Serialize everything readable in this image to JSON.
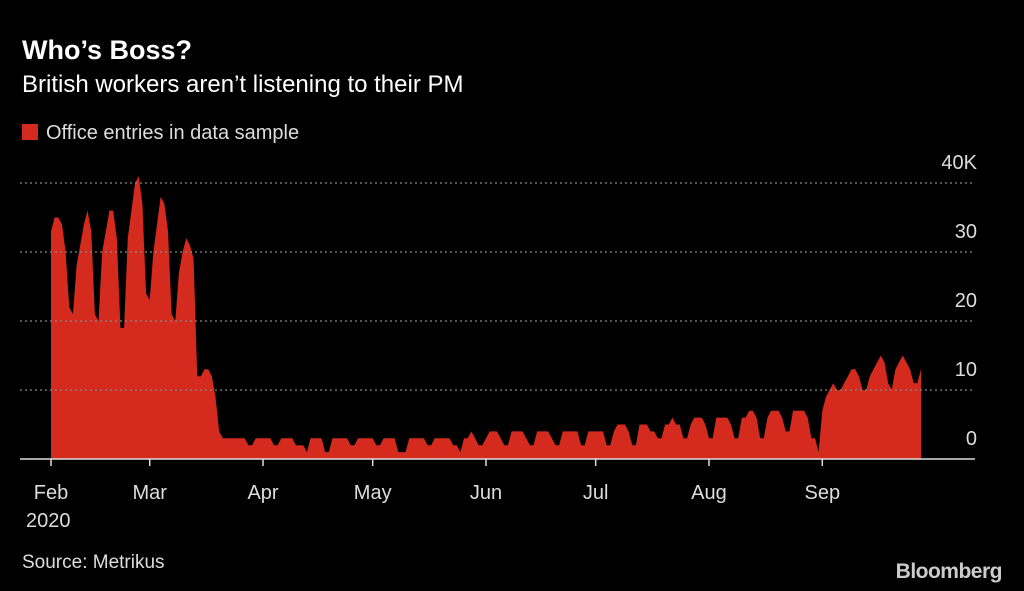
{
  "chart_data": {
    "type": "area",
    "title": "Who’s Boss?",
    "subtitle": "British workers aren’t listening to their PM",
    "source": "Source: Metrikus",
    "brand": "Bloomberg",
    "year_label": "2020",
    "categories": [
      "Feb",
      null,
      null,
      null,
      null,
      null,
      null,
      null,
      null,
      null,
      null,
      null,
      null,
      null,
      null,
      null,
      null,
      null,
      null,
      null,
      null,
      null,
      null,
      null,
      null,
      null,
      null,
      "Mar",
      null,
      null,
      null,
      null,
      null,
      null,
      null,
      null,
      null,
      null,
      null,
      null,
      null,
      null,
      null,
      null,
      null,
      null,
      null,
      null,
      null,
      null,
      null,
      null,
      null,
      null,
      null,
      null,
      null,
      null,
      "Apr",
      null,
      null,
      null,
      null,
      null,
      null,
      null,
      null,
      null,
      null,
      null,
      null,
      null,
      null,
      null,
      null,
      null,
      null,
      null,
      null,
      null,
      null,
      null,
      null,
      null,
      null,
      null,
      null,
      null,
      "May",
      null,
      null,
      null,
      null,
      null,
      null,
      null,
      null,
      null,
      null,
      null,
      null,
      null,
      null,
      null,
      null,
      null,
      null,
      null,
      null,
      null,
      null,
      null,
      null,
      null,
      null,
      null,
      null,
      null,
      null,
      "Jun",
      null,
      null,
      null,
      null,
      null,
      null,
      null,
      null,
      null,
      null,
      null,
      null,
      null,
      null,
      null,
      null,
      null,
      null,
      null,
      null,
      null,
      null,
      null,
      null,
      null,
      null,
      null,
      null,
      null,
      "Jul",
      null,
      null,
      null,
      null,
      null,
      null,
      null,
      null,
      null,
      null,
      null,
      null,
      null,
      null,
      null,
      null,
      null,
      null,
      null,
      null,
      null,
      null,
      null,
      null,
      null,
      null,
      null,
      null,
      null,
      null,
      "Aug",
      null,
      null,
      null,
      null,
      null,
      null,
      null,
      null,
      null,
      null,
      null,
      null,
      null,
      null,
      null,
      null,
      null,
      null,
      null,
      null,
      null,
      null,
      null,
      null,
      null,
      null,
      null,
      null,
      null,
      null,
      "Sep",
      null,
      null,
      null,
      null,
      null,
      null,
      null,
      null,
      null,
      null,
      null,
      null,
      null,
      null,
      null,
      null,
      null,
      null,
      null,
      null,
      null,
      null,
      null,
      null,
      null,
      null,
      null
    ],
    "series": [
      {
        "name": "Office entries in data sample",
        "color": "#d52b1e",
        "values": [
          33,
          35,
          35,
          34,
          30,
          22,
          21,
          28,
          31,
          34,
          36,
          33,
          21,
          20,
          30,
          33,
          36,
          36,
          32,
          19,
          19,
          32,
          36,
          40,
          41,
          37,
          24,
          23,
          30,
          34,
          38,
          37,
          33,
          21,
          20,
          27,
          30,
          32,
          31,
          29,
          12,
          12,
          13,
          13,
          12,
          9,
          4,
          3,
          3,
          3,
          3,
          3,
          3,
          3,
          2,
          2,
          3,
          3,
          3,
          3,
          3,
          2,
          2,
          3,
          3,
          3,
          3,
          2,
          2,
          2,
          1,
          3,
          3,
          3,
          3,
          1,
          1,
          3,
          3,
          3,
          3,
          3,
          2,
          2,
          3,
          3,
          3,
          3,
          3,
          2,
          2,
          3,
          3,
          3,
          3,
          1,
          1,
          1,
          3,
          3,
          3,
          3,
          3,
          2,
          2,
          3,
          3,
          3,
          3,
          3,
          2,
          2,
          1,
          3,
          3,
          4,
          3,
          2,
          2,
          3,
          4,
          4,
          4,
          3,
          2,
          2,
          4,
          4,
          4,
          4,
          3,
          2,
          2,
          4,
          4,
          4,
          4,
          3,
          2,
          2,
          4,
          4,
          4,
          4,
          4,
          2,
          2,
          4,
          4,
          4,
          4,
          4,
          2,
          2,
          4,
          5,
          5,
          5,
          4,
          2,
          2,
          5,
          5,
          5,
          4,
          4,
          3,
          3,
          5,
          5,
          6,
          5,
          5,
          3,
          3,
          5,
          6,
          6,
          6,
          5,
          3,
          3,
          6,
          6,
          6,
          6,
          5,
          3,
          3,
          6,
          6,
          7,
          7,
          6,
          3,
          3,
          6,
          7,
          7,
          7,
          6,
          4,
          4,
          7,
          7,
          7,
          7,
          6,
          3,
          3,
          1,
          7,
          9,
          10,
          11,
          10,
          10,
          11,
          12,
          13,
          13,
          12,
          10,
          10,
          12,
          13,
          14,
          15,
          14,
          11,
          10,
          13,
          14,
          15,
          14,
          13,
          11,
          11,
          13
        ]
      }
    ],
    "ylim": [
      0,
      40
    ],
    "yticks": [
      0,
      10,
      20,
      30,
      {
        "value": 40,
        "label": "40K"
      }
    ],
    "grid": true
  }
}
